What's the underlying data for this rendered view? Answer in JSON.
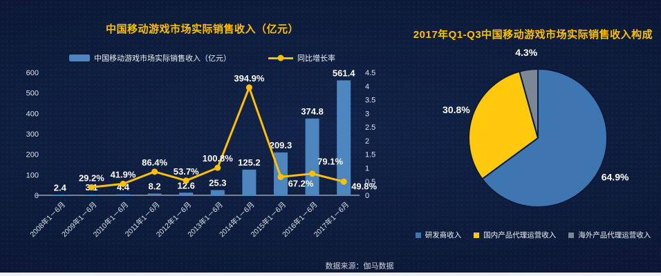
{
  "colors": {
    "accent_yellow": "#FFC000",
    "bar_blue": "#4D86BF",
    "pie_blue": "#3E76B2",
    "pie_yellow": "#FFC90E",
    "pie_gray": "#7B8794",
    "axis_text": "#DCE3EE",
    "data_label_white": "#FFFFFF",
    "background_navy": "#0D1C3B"
  },
  "chart_data": [
    {
      "type": "bar",
      "title": "中国移动游戏市场实际销售收入（亿元）",
      "categories": [
        "2008年1－6月",
        "2009年1－6月",
        "2010年1－6月",
        "2011年1－6月",
        "2012年1－6月",
        "2013年1－6月",
        "2014年1－6月",
        "2015年1－6月",
        "2016年1－6月",
        "2017年1－6月"
      ],
      "series": [
        {
          "name": "中国移动游戏市场实际销售收入（亿元）",
          "type": "bar",
          "axis": "left",
          "color": "#4D86BF",
          "values": [
            2.4,
            3.1,
            4.4,
            8.2,
            12.6,
            25.3,
            125.2,
            209.3,
            374.8,
            561.4
          ],
          "labels": [
            "2.4",
            "3.1",
            "4.4",
            "8.2",
            "12.6",
            "25.3",
            "125.2",
            "209.3",
            "374.8",
            "561.4"
          ]
        },
        {
          "name": "同比增长率",
          "type": "line",
          "axis": "right",
          "color": "#FFC000",
          "values_percent": [
            null,
            29.2,
            41.9,
            86.4,
            53.7,
            100.8,
            394.9,
            67.2,
            79.1,
            49.8
          ],
          "labels": [
            null,
            "29.2%",
            "41.9%",
            "86.4%",
            "53.7%",
            "100.8%",
            "394.9%",
            "67.2%",
            "79.1%",
            "49.8%"
          ],
          "label_placement": [
            null,
            "above",
            "above",
            "above",
            "above",
            "above",
            "above",
            "right-below",
            "above-right",
            "below-right"
          ]
        }
      ],
      "left_axis": {
        "min": 0,
        "max": 600,
        "step": 100
      },
      "right_axis": {
        "min": 0,
        "max": 4.5,
        "step": 0.5
      },
      "grid": false,
      "legend_position": "top"
    },
    {
      "type": "pie",
      "title": "2017年Q1-Q3中国移动游戏市场实际销售收入构成",
      "start_angle_deg": 0,
      "direction": "clockwise",
      "slices": [
        {
          "label": "研发商收入",
          "value_percent": 64.9,
          "display": "64.9%",
          "color": "#3E76B2"
        },
        {
          "label": "国内产品代理运营收入",
          "value_percent": 30.8,
          "display": "30.8%",
          "color": "#FFC90E"
        },
        {
          "label": "海外产品代理运营收入",
          "value_percent": 4.3,
          "display": "4.3%",
          "color": "#7B8794"
        }
      ],
      "legend_position": "bottom"
    }
  ],
  "footer": {
    "source_label": "数据来源：伽马数据"
  }
}
